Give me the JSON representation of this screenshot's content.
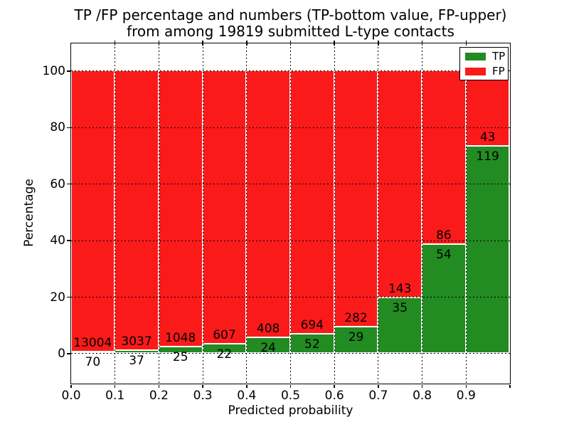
{
  "title": {
    "line1": "TP /FP percentage and numbers (TP-bottom value, FP-upper)",
    "line2": "from among 19819 submitted L-type contacts"
  },
  "chart_data": {
    "type": "bar",
    "stacked": true,
    "normalized_to_percent": true,
    "title": "TP /FP percentage and numbers (TP-bottom value, FP-upper) from among 19819 submitted L-type contacts",
    "xlabel": "Predicted probability",
    "ylabel": "Percentage",
    "total_submitted": 19819,
    "bin_width": 0.1,
    "bin_starts": [
      0.0,
      0.1,
      0.2,
      0.3,
      0.4,
      0.5,
      0.6,
      0.7,
      0.8,
      0.9
    ],
    "series": [
      {
        "name": "TP",
        "color": "#228b22",
        "position": "bottom",
        "counts": [
          70,
          37,
          25,
          22,
          24,
          52,
          29,
          35,
          54,
          119
        ]
      },
      {
        "name": "FP",
        "color": "#fb1a1a",
        "position": "top",
        "counts": [
          13004,
          3037,
          1048,
          607,
          408,
          694,
          282,
          143,
          86,
          43
        ]
      }
    ],
    "x_ticks": [
      "0.0",
      "0.1",
      "0.2",
      "0.3",
      "0.4",
      "0.5",
      "0.6",
      "0.7",
      "0.8",
      "0.9"
    ],
    "y_ticks": [
      "0",
      "20",
      "40",
      "60",
      "80",
      "100"
    ],
    "xlim": [
      0.0,
      1.0
    ],
    "ylim": [
      -10.58,
      109.8
    ],
    "grid": "dotted-black-on-top",
    "bar_edge_color": "#ffffff",
    "legend": {
      "position": "upper right",
      "entries": [
        {
          "label": "TP",
          "color": "#228b22"
        },
        {
          "label": "FP",
          "color": "#fb1a1a"
        }
      ]
    }
  }
}
